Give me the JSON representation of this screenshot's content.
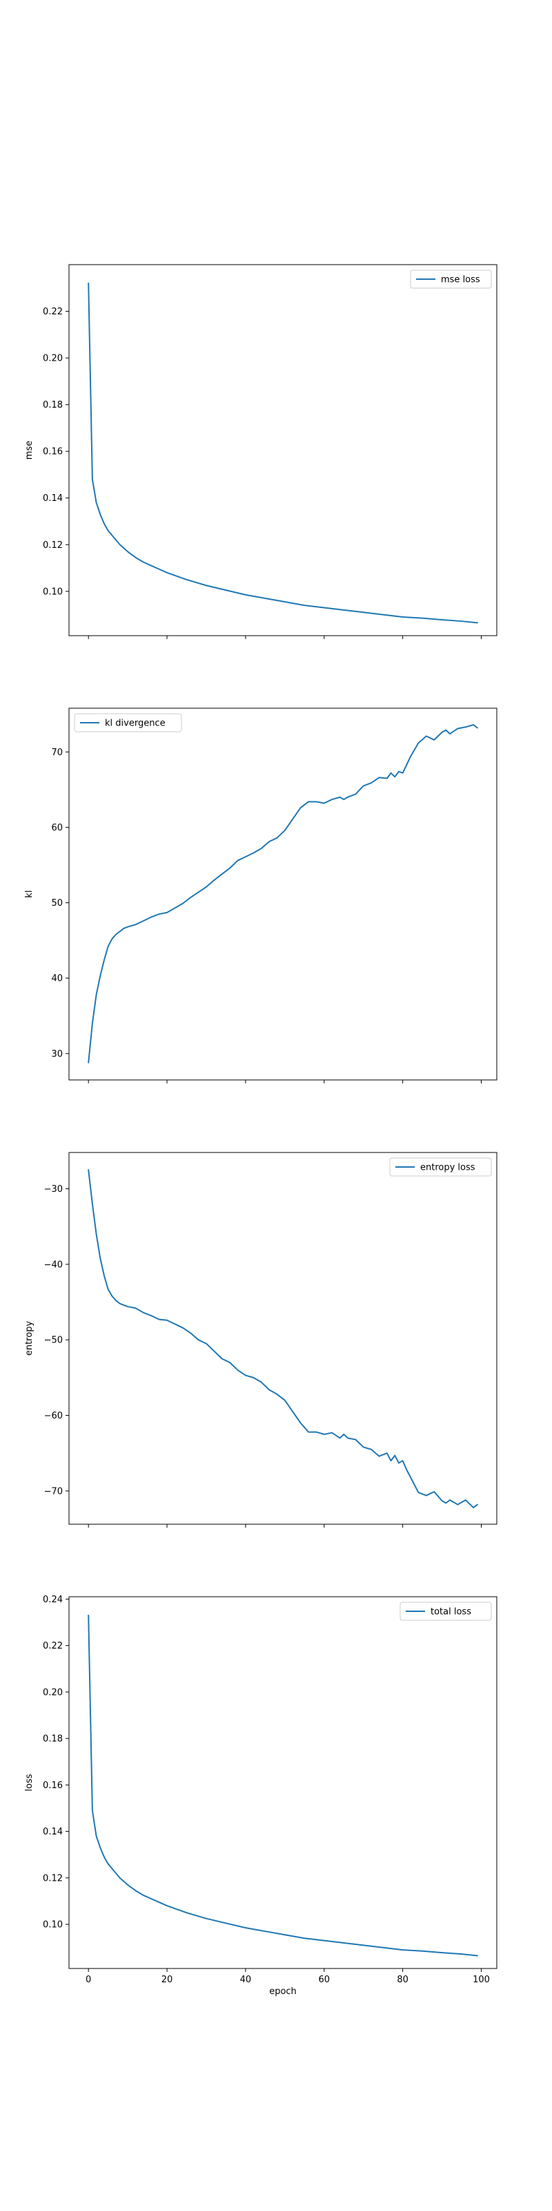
{
  "figure": {
    "shared_xlabel": "epoch",
    "colors": {
      "series": "#1f77b4",
      "axes": "#000000",
      "background": "#ffffff"
    }
  },
  "chart_data": [
    {
      "type": "line",
      "title": "",
      "xlabel": "",
      "ylabel": "mse",
      "xlim": [
        -4.95,
        103.95
      ],
      "ylim": [
        0.081,
        0.24
      ],
      "xticks": [
        0,
        20,
        40,
        60,
        80,
        100
      ],
      "show_xtick_labels": false,
      "yticks": [
        0.1,
        0.12,
        0.14,
        0.16,
        0.18,
        0.2,
        0.22
      ],
      "ytick_labels": [
        "0.10",
        "0.12",
        "0.14",
        "0.16",
        "0.18",
        "0.20",
        "0.22"
      ],
      "grid": false,
      "legend": "top-right",
      "series": [
        {
          "name": "mse loss",
          "x": [
            0,
            1,
            2,
            3,
            4,
            5,
            6,
            7,
            8,
            10,
            12,
            14,
            16,
            18,
            20,
            25,
            30,
            35,
            40,
            45,
            50,
            55,
            60,
            65,
            70,
            75,
            80,
            85,
            90,
            95,
            99
          ],
          "y": [
            0.232,
            0.148,
            0.138,
            0.133,
            0.129,
            0.126,
            0.124,
            0.122,
            0.12,
            0.117,
            0.1145,
            0.1125,
            0.111,
            0.1095,
            0.108,
            0.105,
            0.1025,
            0.1005,
            0.0985,
            0.097,
            0.0955,
            0.094,
            0.093,
            0.092,
            0.091,
            0.09,
            0.089,
            0.0885,
            0.0878,
            0.0872,
            0.0865
          ]
        }
      ]
    },
    {
      "type": "line",
      "title": "",
      "xlabel": "",
      "ylabel": "kl",
      "xlim": [
        -4.95,
        103.95
      ],
      "ylim": [
        26.5,
        75.8
      ],
      "xticks": [
        0,
        20,
        40,
        60,
        80,
        100
      ],
      "show_xtick_labels": false,
      "yticks": [
        30,
        40,
        50,
        60,
        70
      ],
      "ytick_labels": [
        "30",
        "40",
        "50",
        "60",
        "70"
      ],
      "grid": false,
      "legend": "top-left",
      "series": [
        {
          "name": "kl divergence",
          "x": [
            0,
            1,
            2,
            3,
            4,
            5,
            6,
            7,
            8,
            9,
            10,
            12,
            14,
            16,
            18,
            20,
            22,
            24,
            26,
            28,
            30,
            32,
            34,
            36,
            38,
            40,
            42,
            44,
            46,
            48,
            50,
            52,
            54,
            56,
            58,
            60,
            62,
            64,
            65,
            66,
            68,
            70,
            72,
            74,
            76,
            77,
            78,
            79,
            80,
            81,
            82,
            84,
            86,
            88,
            90,
            91,
            92,
            94,
            96,
            98,
            99
          ],
          "y": [
            28.8,
            34.0,
            37.8,
            40.3,
            42.4,
            44.2,
            45.2,
            45.8,
            46.2,
            46.6,
            46.8,
            47.1,
            47.6,
            48.1,
            48.5,
            48.7,
            49.3,
            49.9,
            50.7,
            51.4,
            52.1,
            53.0,
            53.8,
            54.6,
            55.6,
            56.1,
            56.6,
            57.2,
            58.1,
            58.6,
            59.6,
            61.1,
            62.6,
            63.4,
            63.4,
            63.2,
            63.7,
            64.0,
            63.7,
            64.0,
            64.4,
            65.5,
            65.9,
            66.6,
            66.5,
            67.2,
            66.7,
            67.4,
            67.2,
            68.3,
            69.4,
            71.2,
            72.1,
            71.6,
            72.6,
            72.9,
            72.4,
            73.1,
            73.3,
            73.6,
            73.2
          ]
        }
      ]
    },
    {
      "type": "line",
      "title": "",
      "xlabel": "",
      "ylabel": "entropy",
      "xlim": [
        -4.95,
        103.95
      ],
      "ylim": [
        -74.4,
        -25.2
      ],
      "xticks": [
        0,
        20,
        40,
        60,
        80,
        100
      ],
      "show_xtick_labels": false,
      "yticks": [
        -70,
        -60,
        -50,
        -40,
        -30
      ],
      "ytick_labels": [
        "−70",
        "−60",
        "−50",
        "−40",
        "−30"
      ],
      "grid": false,
      "legend": "top-right",
      "series": [
        {
          "name": "entropy loss",
          "x": [
            0,
            1,
            2,
            3,
            4,
            5,
            6,
            7,
            8,
            9,
            10,
            12,
            14,
            16,
            18,
            20,
            22,
            24,
            26,
            28,
            30,
            32,
            34,
            36,
            38,
            40,
            42,
            44,
            46,
            48,
            50,
            52,
            54,
            56,
            58,
            60,
            62,
            64,
            65,
            66,
            68,
            70,
            72,
            74,
            76,
            77,
            78,
            79,
            80,
            81,
            82,
            84,
            86,
            88,
            90,
            91,
            92,
            94,
            96,
            98,
            99
          ],
          "y": [
            -27.5,
            -32.0,
            -36.0,
            -39.2,
            -41.5,
            -43.3,
            -44.2,
            -44.8,
            -45.2,
            -45.4,
            -45.6,
            -45.8,
            -46.4,
            -46.8,
            -47.3,
            -47.4,
            -47.9,
            -48.4,
            -49.1,
            -50.0,
            -50.5,
            -51.5,
            -52.5,
            -53.0,
            -54.0,
            -54.7,
            -55.0,
            -55.6,
            -56.6,
            -57.2,
            -58.0,
            -59.5,
            -61.0,
            -62.2,
            -62.2,
            -62.5,
            -62.3,
            -63.0,
            -62.5,
            -63.0,
            -63.2,
            -64.2,
            -64.5,
            -65.4,
            -65.0,
            -66.0,
            -65.3,
            -66.3,
            -66.0,
            -67.2,
            -68.2,
            -70.2,
            -70.6,
            -70.1,
            -71.3,
            -71.6,
            -71.2,
            -71.8,
            -71.2,
            -72.2,
            -71.8
          ]
        }
      ]
    },
    {
      "type": "line",
      "title": "",
      "xlabel": "epoch",
      "ylabel": "loss",
      "xlim": [
        -4.95,
        103.95
      ],
      "ylim": [
        0.081,
        0.241
      ],
      "xticks": [
        0,
        20,
        40,
        60,
        80,
        100
      ],
      "show_xtick_labels": true,
      "xtick_labels": [
        "0",
        "20",
        "40",
        "60",
        "80",
        "100"
      ],
      "yticks": [
        0.1,
        0.12,
        0.14,
        0.16,
        0.18,
        0.2,
        0.22,
        0.24
      ],
      "ytick_labels": [
        "0.10",
        "0.12",
        "0.14",
        "0.16",
        "0.18",
        "0.20",
        "0.22",
        "0.24"
      ],
      "grid": false,
      "legend": "top-right",
      "series": [
        {
          "name": "total loss",
          "x": [
            0,
            1,
            2,
            3,
            4,
            5,
            6,
            7,
            8,
            10,
            12,
            14,
            16,
            18,
            20,
            25,
            30,
            35,
            40,
            45,
            50,
            55,
            60,
            65,
            70,
            75,
            80,
            85,
            90,
            95,
            99
          ],
          "y": [
            0.233,
            0.149,
            0.138,
            0.133,
            0.129,
            0.126,
            0.124,
            0.122,
            0.12,
            0.117,
            0.1145,
            0.1125,
            0.111,
            0.1095,
            0.108,
            0.105,
            0.1025,
            0.1005,
            0.0985,
            0.097,
            0.0955,
            0.094,
            0.093,
            0.092,
            0.091,
            0.09,
            0.089,
            0.0885,
            0.0878,
            0.0872,
            0.0865
          ]
        }
      ]
    }
  ]
}
